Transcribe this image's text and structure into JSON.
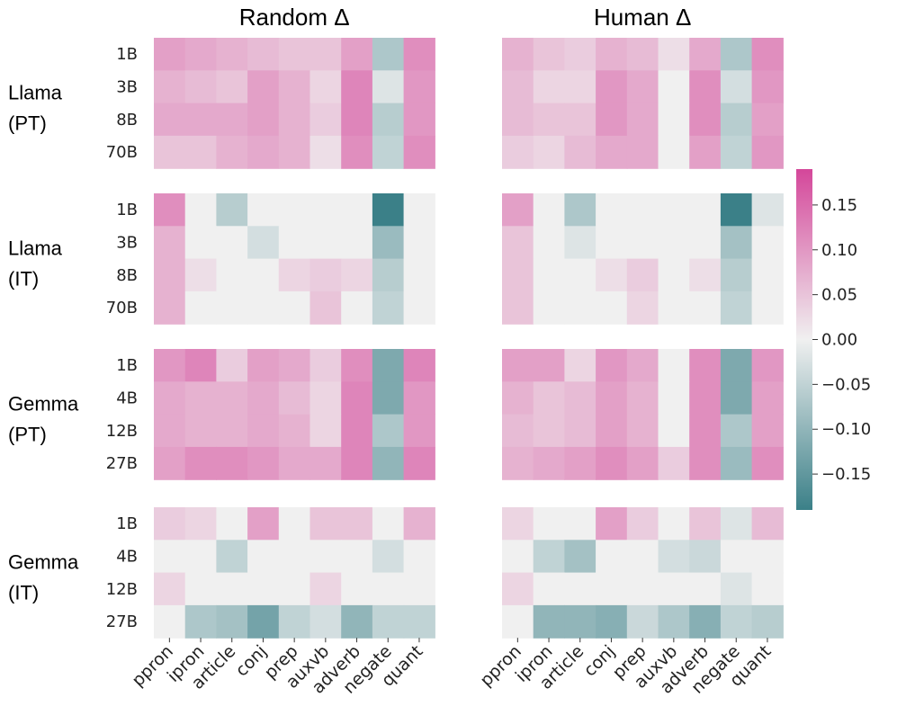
{
  "chart_data": {
    "type": "heatmap",
    "panel_titles": [
      "Random Δ",
      "Human Δ"
    ],
    "columns": [
      "ppron",
      "ipron",
      "article",
      "conj",
      "prep",
      "auxvb",
      "adverb",
      "negate",
      "quant"
    ],
    "groups": [
      {
        "label_line1": "Llama",
        "label_line2": "(PT)",
        "rows": [
          "1B",
          "3B",
          "8B",
          "70B"
        ]
      },
      {
        "label_line1": "Llama",
        "label_line2": "(IT)",
        "rows": [
          "1B",
          "3B",
          "8B",
          "70B"
        ]
      },
      {
        "label_line1": "Gemma",
        "label_line2": "(PT)",
        "rows": [
          "1B",
          "4B",
          "12B",
          "27B"
        ]
      },
      {
        "label_line1": "Gemma",
        "label_line2": "(IT)",
        "rows": [
          "1B",
          "4B",
          "12B",
          "27B"
        ]
      }
    ],
    "values": [
      [
        [
          [
            0.09,
            0.08,
            0.07,
            0.06,
            0.05,
            0.05,
            0.09,
            -0.07,
            0.11
          ],
          [
            0.07,
            0.06,
            0.05,
            0.09,
            0.07,
            0.03,
            0.12,
            -0.02,
            0.1
          ],
          [
            0.08,
            0.08,
            0.08,
            0.09,
            0.07,
            0.04,
            0.12,
            -0.06,
            0.1
          ],
          [
            0.05,
            0.05,
            0.07,
            0.08,
            0.07,
            0.02,
            0.11,
            -0.05,
            0.11
          ]
        ],
        [
          [
            0.11,
            0.0,
            -0.06,
            0.0,
            0.0,
            0.0,
            0.0,
            -0.19,
            0.0
          ],
          [
            0.07,
            0.0,
            0.0,
            -0.03,
            0.0,
            0.0,
            0.0,
            -0.09,
            0.0
          ],
          [
            0.07,
            0.02,
            0.0,
            0.0,
            0.03,
            0.04,
            0.03,
            -0.06,
            0.0
          ],
          [
            0.07,
            0.0,
            0.0,
            0.0,
            0.0,
            0.05,
            0.0,
            -0.05,
            0.0
          ]
        ],
        [
          [
            0.1,
            0.12,
            0.04,
            0.09,
            0.08,
            0.04,
            0.11,
            -0.12,
            0.12
          ],
          [
            0.08,
            0.07,
            0.07,
            0.08,
            0.06,
            0.03,
            0.12,
            -0.12,
            0.1
          ],
          [
            0.08,
            0.07,
            0.07,
            0.08,
            0.07,
            0.03,
            0.12,
            -0.07,
            0.1
          ],
          [
            0.09,
            0.11,
            0.11,
            0.1,
            0.08,
            0.08,
            0.12,
            -0.1,
            0.12
          ]
        ],
        [
          [
            0.04,
            0.03,
            0.0,
            0.09,
            0.0,
            0.05,
            0.05,
            0.0,
            0.07
          ],
          [
            0.0,
            0.0,
            -0.05,
            0.0,
            0.0,
            0.0,
            0.0,
            -0.03,
            0.0
          ],
          [
            0.03,
            0.0,
            0.0,
            0.0,
            0.0,
            0.03,
            0.0,
            0.0,
            0.0
          ],
          [
            0.0,
            -0.07,
            -0.08,
            -0.13,
            -0.05,
            -0.03,
            -0.1,
            -0.05,
            -0.05
          ]
        ]
      ],
      [
        [
          [
            0.07,
            0.05,
            0.04,
            0.07,
            0.06,
            0.02,
            0.08,
            -0.07,
            0.11
          ],
          [
            0.06,
            0.03,
            0.03,
            0.1,
            0.08,
            0.0,
            0.11,
            -0.03,
            0.1
          ],
          [
            0.06,
            0.05,
            0.05,
            0.1,
            0.08,
            0.0,
            0.11,
            -0.06,
            0.09
          ],
          [
            0.04,
            0.03,
            0.06,
            0.08,
            0.08,
            0.0,
            0.09,
            -0.05,
            0.1
          ]
        ],
        [
          [
            0.09,
            0.0,
            -0.07,
            0.0,
            0.0,
            0.0,
            0.0,
            -0.19,
            -0.02
          ],
          [
            0.05,
            0.0,
            -0.02,
            0.0,
            0.0,
            0.0,
            0.0,
            -0.08,
            0.0
          ],
          [
            0.05,
            0.0,
            0.0,
            0.02,
            0.04,
            0.0,
            0.02,
            -0.06,
            0.0
          ],
          [
            0.05,
            0.0,
            0.0,
            0.0,
            0.03,
            0.0,
            0.0,
            -0.05,
            0.0
          ]
        ],
        [
          [
            0.09,
            0.09,
            0.03,
            0.1,
            0.08,
            0.0,
            0.11,
            -0.12,
            0.1
          ],
          [
            0.07,
            0.05,
            0.06,
            0.09,
            0.07,
            0.0,
            0.11,
            -0.12,
            0.09
          ],
          [
            0.06,
            0.05,
            0.06,
            0.09,
            0.07,
            0.0,
            0.11,
            -0.07,
            0.09
          ],
          [
            0.07,
            0.08,
            0.09,
            0.11,
            0.09,
            0.04,
            0.11,
            -0.09,
            0.11
          ]
        ],
        [
          [
            0.03,
            0.0,
            0.0,
            0.09,
            0.04,
            0.0,
            0.05,
            -0.02,
            0.06
          ],
          [
            0.0,
            -0.05,
            -0.08,
            0.0,
            0.0,
            -0.03,
            -0.04,
            0.0,
            0.0
          ],
          [
            0.03,
            0.0,
            0.0,
            0.0,
            0.0,
            0.0,
            0.0,
            -0.02,
            0.0
          ],
          [
            0.0,
            -0.1,
            -0.1,
            -0.11,
            -0.04,
            -0.07,
            -0.11,
            -0.05,
            -0.06
          ]
        ]
      ]
    ],
    "colorbar": {
      "vmin": -0.19,
      "vmax": 0.19,
      "ticks": [
        0.15,
        0.1,
        0.05,
        0.0,
        -0.05,
        -0.1,
        -0.15
      ],
      "tick_labels": [
        "0.15",
        "0.10",
        "0.05",
        "0.00",
        "−0.05",
        "−0.10",
        "−0.15"
      ],
      "neg_color": "#3b8088",
      "mid_color": "#f0f0f0",
      "pos_color": "#d4479a"
    }
  }
}
